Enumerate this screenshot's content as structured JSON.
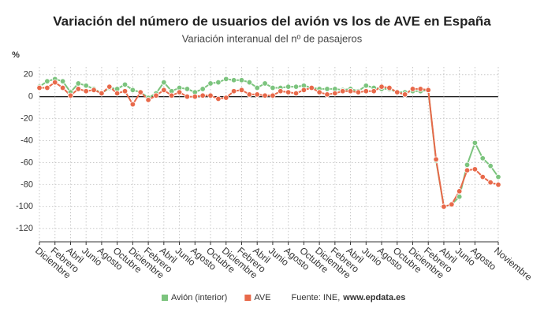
{
  "chart_data": {
    "type": "line",
    "title": "Variación del número de usuarios del avión vs los de AVE en España",
    "subtitle": "Variación interanual del nº de pasajeros",
    "y_label": "%",
    "categories": [
      "Diciembre",
      null,
      "Febrero",
      null,
      "Abril",
      null,
      "Junio",
      null,
      "Agosto",
      null,
      "Octubre",
      null,
      "Diciembre",
      null,
      "Febrero",
      null,
      "Abril",
      null,
      "Junio",
      null,
      "Agosto",
      null,
      "Octubre",
      null,
      "Diciembre",
      null,
      "Febrero",
      null,
      "Abril",
      null,
      "Junio",
      null,
      "Agosto",
      null,
      "Octubre",
      null,
      "Diciembre",
      null,
      "Febrero",
      null,
      "Abril",
      null,
      "Junio",
      null,
      "Agosto",
      null,
      "Octubre",
      null,
      "Diciembre",
      null,
      "Febrero",
      null,
      "Abril",
      null,
      "Junio",
      null,
      "Agosto",
      null,
      null,
      "Noviembre"
    ],
    "series": [
      {
        "name": "Avión (interior)",
        "color": "#7cc47e",
        "values": [
          9,
          14,
          16,
          14,
          4,
          12,
          10,
          7,
          3,
          8,
          7,
          11,
          6,
          4,
          -1,
          3,
          13,
          5,
          8,
          7,
          4,
          7,
          12,
          13,
          16,
          15,
          15,
          13,
          8,
          12,
          8,
          8,
          9,
          9,
          10,
          8,
          7,
          7,
          7,
          6,
          7,
          5,
          10,
          8,
          7,
          7,
          4,
          4,
          5,
          5,
          6,
          -58,
          -100,
          -98,
          -91,
          -62,
          -42,
          -56,
          -63,
          -73
        ]
      },
      {
        "name": "AVE",
        "color": "#e8694a",
        "values": [
          8,
          8,
          13,
          8,
          1,
          7,
          5,
          6,
          3,
          9,
          3,
          5,
          -7,
          4,
          -3,
          1,
          6,
          1,
          4,
          0,
          0,
          1,
          1,
          -2,
          -1,
          5,
          6,
          2,
          2,
          1,
          1,
          5,
          4,
          3,
          6,
          8,
          4,
          2,
          3,
          5,
          5,
          4,
          5,
          5,
          9,
          8,
          4,
          2,
          7,
          7,
          6,
          -57,
          -100,
          -98,
          -86,
          -67,
          -66,
          -73,
          -78,
          -80
        ]
      }
    ],
    "ylim": [
      -132,
      27
    ],
    "yticks": [
      20,
      0,
      -20,
      -40,
      -60,
      -80,
      -100,
      -120
    ],
    "grid": true,
    "source": "Fuente: INE,",
    "source_link": "www.epdata.es"
  }
}
